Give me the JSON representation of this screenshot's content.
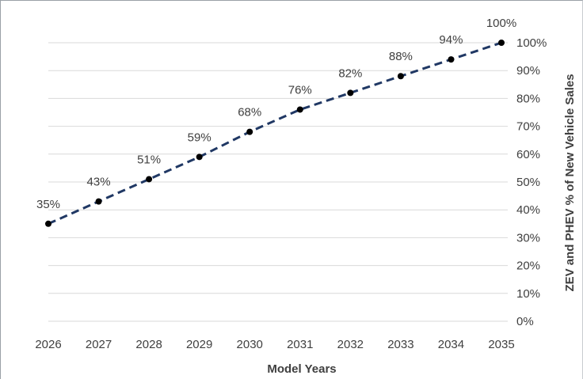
{
  "chart_data": {
    "type": "line",
    "title": "",
    "xlabel": "Model Years",
    "ylabel": "ZEV and PHEV % of New Vehicle Sales",
    "categories": [
      "2026",
      "2027",
      "2028",
      "2029",
      "2030",
      "2031",
      "2032",
      "2033",
      "2034",
      "2035"
    ],
    "series": [
      {
        "values": [
          35,
          43,
          51,
          59,
          68,
          76,
          82,
          88,
          94,
          100
        ],
        "labels": [
          "35%",
          "43%",
          "51%",
          "59%",
          "68%",
          "76%",
          "82%",
          "88%",
          "94%",
          "100%"
        ],
        "color": "#203864",
        "line_style": "dashed",
        "marker": "circle"
      }
    ],
    "ylim": [
      0,
      100
    ],
    "yticks": [
      0,
      10,
      20,
      30,
      40,
      50,
      60,
      70,
      80,
      90,
      100
    ],
    "ytick_labels": [
      "0%",
      "10%",
      "20%",
      "30%",
      "40%",
      "50%",
      "60%",
      "70%",
      "80%",
      "90%",
      "100%"
    ],
    "y_axis_side": "right",
    "grid": true,
    "grid_color": "#d9d9d9",
    "text_color": "#3f3f3f",
    "marker_color": "#000000"
  }
}
